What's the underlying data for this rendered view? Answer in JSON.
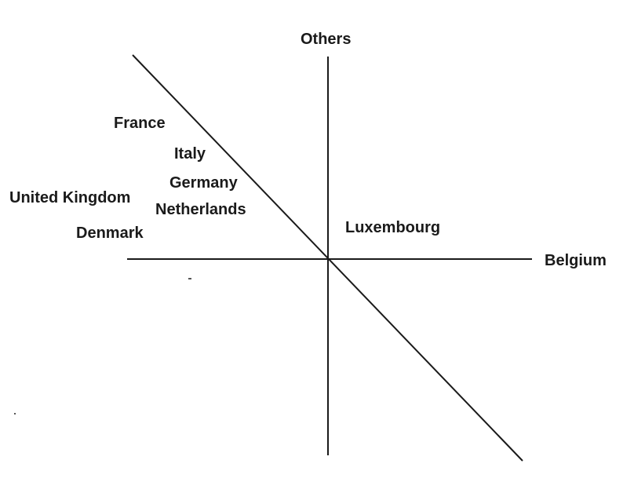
{
  "axes": {
    "vertical_label": "Others",
    "horizontal_label": "Belgium"
  },
  "countries": [
    {
      "name": "France"
    },
    {
      "name": "Italy"
    },
    {
      "name": "Germany"
    },
    {
      "name": "United Kingdom"
    },
    {
      "name": "Netherlands"
    },
    {
      "name": "Denmark"
    },
    {
      "name": "Luxembourg"
    }
  ],
  "colors": {
    "ink": "#1a1a1a",
    "background": "#ffffff"
  }
}
